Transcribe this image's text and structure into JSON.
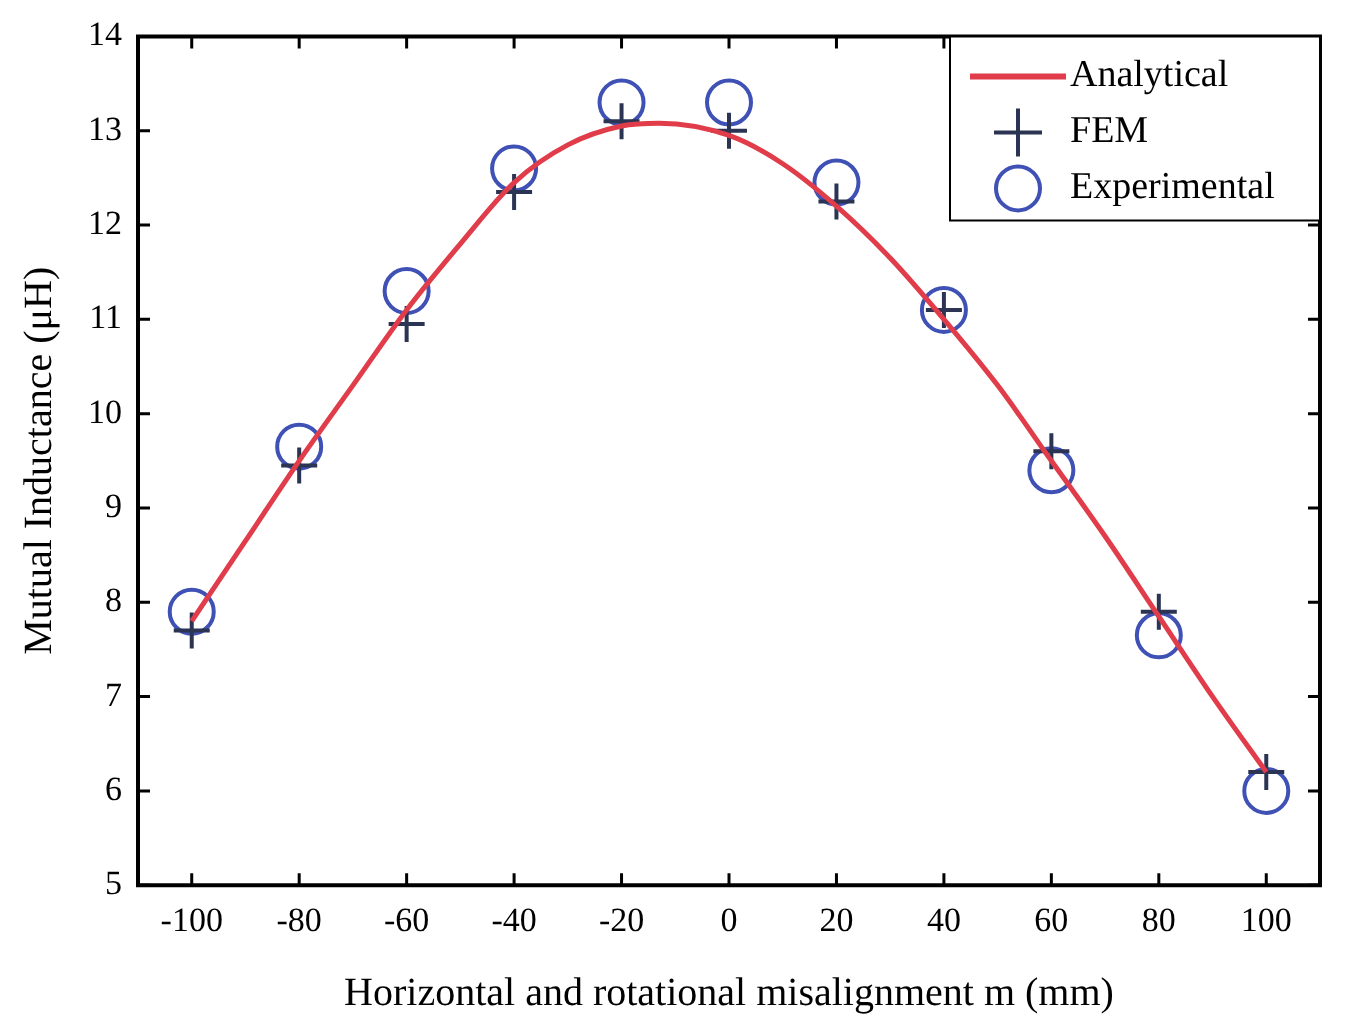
{
  "chart_data": {
    "type": "scatter",
    "xlabel": "Horizontal and rotational misalignment m (mm)",
    "ylabel": "Mutual Inductance (μH)",
    "xlim": [
      -110,
      110
    ],
    "xticks": [
      -100,
      -80,
      -60,
      -40,
      -20,
      0,
      20,
      40,
      60,
      80,
      100
    ],
    "ylim": [
      5,
      14
    ],
    "yticks": [
      5,
      6,
      7,
      8,
      9,
      10,
      11,
      12,
      13,
      14
    ],
    "grid": false,
    "legend": "top right",
    "series": [
      {
        "name": "Analytical",
        "type": "line",
        "color": "#e03c4a",
        "marker": "none",
        "x": [
          -100,
          -90,
          -80,
          -70,
          -60,
          -50,
          -40,
          -30,
          -20,
          -13,
          0,
          10,
          20,
          30,
          40,
          50,
          60,
          70,
          80,
          90,
          100
        ],
        "values": [
          7.8,
          8.65,
          9.5,
          10.3,
          11.1,
          11.8,
          12.45,
          12.85,
          13.05,
          13.08,
          12.95,
          12.65,
          12.2,
          11.65,
          11.0,
          10.3,
          9.5,
          8.7,
          7.85,
          7.0,
          6.2
        ]
      },
      {
        "name": "FEM",
        "type": "scatter",
        "color": "#2b3553",
        "marker": "cross",
        "x": [
          -100,
          -80,
          -60,
          -40,
          -20,
          0,
          20,
          40,
          60,
          80,
          100
        ],
        "values": [
          7.7,
          9.45,
          10.95,
          12.35,
          13.1,
          13.0,
          12.25,
          11.1,
          9.6,
          7.9,
          6.2
        ]
      },
      {
        "name": "Experimental",
        "type": "scatter",
        "color": "#3f51b5",
        "marker": "circle",
        "x": [
          -100,
          -80,
          -60,
          -40,
          -20,
          0,
          20,
          40,
          60,
          80,
          100
        ],
        "values": [
          7.9,
          9.65,
          11.3,
          12.6,
          13.3,
          13.3,
          12.45,
          11.1,
          9.4,
          7.65,
          6.0
        ]
      }
    ]
  }
}
